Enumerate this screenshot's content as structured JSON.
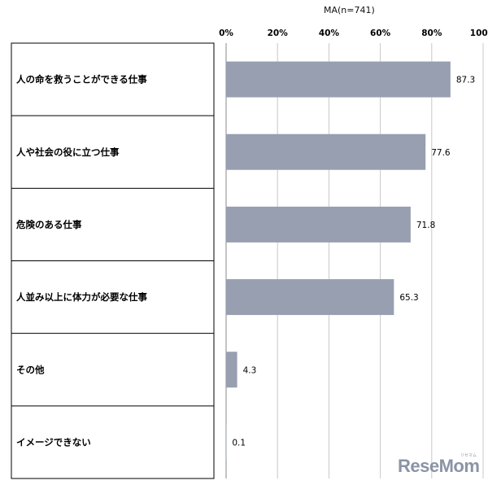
{
  "annotation": "MA(n=741)",
  "watermark": "ReseMom",
  "watermark_sub": "リセマム",
  "colors": {
    "bar": "#979fb1",
    "grid": "#c8c8c8",
    "border": "#000000"
  },
  "chart_data": {
    "type": "bar",
    "orientation": "horizontal",
    "categories": [
      "人の命を救うことができる仕事",
      "人や社会の役に立つ仕事",
      "危険のある仕事",
      "人並み以上に体力が必要な仕事",
      "その他",
      "イメージできない"
    ],
    "values": [
      87.3,
      77.6,
      71.8,
      65.3,
      4.3,
      0.1
    ],
    "value_labels": [
      "87.3",
      "77.6",
      "71.8",
      "65.3",
      "4.3",
      "0.1"
    ],
    "xlim": [
      0,
      100
    ],
    "ticks": [
      0,
      20,
      40,
      60,
      80,
      100
    ],
    "tick_labels": [
      "0%",
      "20%",
      "40%",
      "60%",
      "80%",
      "100%"
    ],
    "grid": true
  }
}
